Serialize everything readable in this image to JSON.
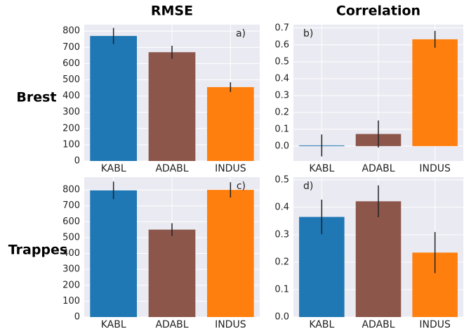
{
  "column_titles": [
    "RMSE",
    "Correlation"
  ],
  "row_labels": [
    "Brest",
    "Trappes"
  ],
  "chart_data": [
    {
      "type": "bar",
      "annotation": "a)",
      "annotation_corner": "upper right",
      "categories": [
        "KABL",
        "ADABL",
        "INDUS"
      ],
      "values": [
        770,
        670,
        455
      ],
      "errors": [
        50,
        40,
        30
      ],
      "colors": [
        "#1f77b4",
        "#8c564b",
        "#ff7f0e"
      ],
      "ylim": [
        0,
        840
      ],
      "yticks": [
        0,
        100,
        200,
        300,
        400,
        500,
        600,
        700,
        800
      ],
      "grid": true
    },
    {
      "type": "bar",
      "annotation": "b)",
      "annotation_corner": "upper left",
      "categories": [
        "KABL",
        "ADABL",
        "INDUS"
      ],
      "values": [
        0.004,
        0.072,
        0.633
      ],
      "errors": [
        0.065,
        0.08,
        0.05
      ],
      "colors": [
        "#1f77b4",
        "#8c564b",
        "#ff7f0e"
      ],
      "ylim": [
        -0.088,
        0.72
      ],
      "yticks": [
        {
          "value": 0,
          "label": "0.0"
        },
        0.1,
        0.2,
        0.3,
        0.4,
        0.5,
        0.6,
        0.7
      ],
      "grid": true
    },
    {
      "type": "bar",
      "annotation": "c)",
      "annotation_corner": "upper right",
      "categories": [
        "KABL",
        "ADABL",
        "INDUS"
      ],
      "values": [
        797,
        550,
        800
      ],
      "errors": [
        55,
        40,
        48
      ],
      "colors": [
        "#1f77b4",
        "#8c564b",
        "#ff7f0e"
      ],
      "ylim": [
        0,
        880
      ],
      "yticks": [
        0,
        100,
        200,
        300,
        400,
        500,
        600,
        700,
        800
      ],
      "grid": true
    },
    {
      "type": "bar",
      "annotation": "d)",
      "annotation_corner": "upper left",
      "categories": [
        "KABL",
        "ADABL",
        "INDUS"
      ],
      "values": [
        0.365,
        0.422,
        0.235
      ],
      "errors": [
        0.063,
        0.058,
        0.075
      ],
      "colors": [
        "#1f77b4",
        "#8c564b",
        "#ff7f0e"
      ],
      "ylim": [
        0,
        0.51
      ],
      "yticks": [
        {
          "value": 0,
          "label": "0.0"
        },
        0.1,
        0.2,
        0.3,
        0.4,
        0.5
      ],
      "grid": true
    }
  ]
}
